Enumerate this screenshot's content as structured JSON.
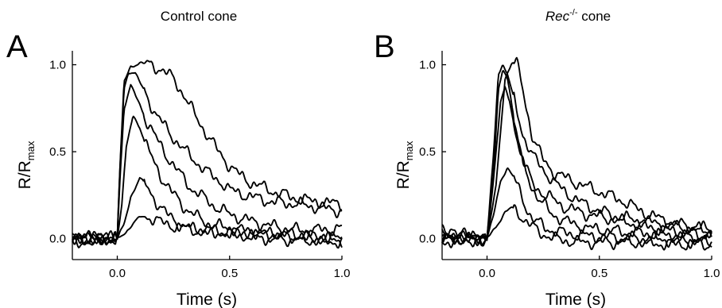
{
  "chart_data": [
    {
      "panel": "A",
      "title": "Control cone",
      "type": "line",
      "xlabel": "Time (s)",
      "ylabel_main": "R/R",
      "ylabel_sub": "max",
      "xlim": [
        -0.2,
        1.0
      ],
      "ylim": [
        -0.12,
        1.08
      ],
      "xticks": [
        {
          "value": 0.0,
          "label": "0.0"
        },
        {
          "value": 0.5,
          "label": "0.5"
        },
        {
          "value": 1.0,
          "label": "1.0"
        }
      ],
      "yticks": [
        {
          "value": 0.0,
          "label": "0.0"
        },
        {
          "value": 0.5,
          "label": "0.5"
        },
        {
          "value": 1.0,
          "label": "1.0"
        }
      ],
      "series": [
        {
          "values": [
            [
              -0.2,
              -0.01
            ],
            [
              0.0,
              0.0
            ],
            [
              0.01,
              0.35
            ],
            [
              0.03,
              0.9
            ],
            [
              0.06,
              0.99
            ],
            [
              0.1,
              1.01
            ],
            [
              0.15,
              1.0
            ],
            [
              0.2,
              0.97
            ],
            [
              0.25,
              0.92
            ],
            [
              0.3,
              0.82
            ],
            [
              0.35,
              0.7
            ],
            [
              0.4,
              0.6
            ],
            [
              0.45,
              0.5
            ],
            [
              0.5,
              0.42
            ],
            [
              0.55,
              0.36
            ],
            [
              0.6,
              0.32
            ],
            [
              0.7,
              0.27
            ],
            [
              0.8,
              0.23
            ],
            [
              0.9,
              0.21
            ],
            [
              1.0,
              0.2
            ]
          ]
        },
        {
          "values": [
            [
              -0.2,
              -0.02
            ],
            [
              0.0,
              0.0
            ],
            [
              0.01,
              0.35
            ],
            [
              0.03,
              0.86
            ],
            [
              0.05,
              0.96
            ],
            [
              0.08,
              0.95
            ],
            [
              0.12,
              0.85
            ],
            [
              0.17,
              0.72
            ],
            [
              0.22,
              0.63
            ],
            [
              0.27,
              0.55
            ],
            [
              0.32,
              0.48
            ],
            [
              0.37,
              0.42
            ],
            [
              0.42,
              0.36
            ],
            [
              0.47,
              0.32
            ],
            [
              0.5,
              0.28
            ],
            [
              0.6,
              0.24
            ],
            [
              0.7,
              0.21
            ],
            [
              0.8,
              0.2
            ],
            [
              0.9,
              0.18
            ],
            [
              1.0,
              0.16
            ]
          ]
        },
        {
          "values": [
            [
              -0.2,
              0.01
            ],
            [
              0.0,
              0.0
            ],
            [
              0.01,
              0.3
            ],
            [
              0.03,
              0.75
            ],
            [
              0.06,
              0.88
            ],
            [
              0.09,
              0.8
            ],
            [
              0.13,
              0.68
            ],
            [
              0.18,
              0.56
            ],
            [
              0.23,
              0.46
            ],
            [
              0.28,
              0.37
            ],
            [
              0.33,
              0.29
            ],
            [
              0.38,
              0.24
            ],
            [
              0.43,
              0.19
            ],
            [
              0.5,
              0.14
            ],
            [
              0.6,
              0.1
            ],
            [
              0.7,
              0.07
            ],
            [
              0.8,
              0.05
            ],
            [
              0.9,
              0.05
            ],
            [
              1.0,
              0.06
            ]
          ]
        },
        {
          "values": [
            [
              -0.2,
              -0.01
            ],
            [
              0.0,
              0.0
            ],
            [
              0.02,
              0.2
            ],
            [
              0.04,
              0.52
            ],
            [
              0.07,
              0.71
            ],
            [
              0.1,
              0.64
            ],
            [
              0.14,
              0.5
            ],
            [
              0.19,
              0.37
            ],
            [
              0.24,
              0.27
            ],
            [
              0.3,
              0.18
            ],
            [
              0.36,
              0.12
            ],
            [
              0.42,
              0.08
            ],
            [
              0.5,
              0.06
            ],
            [
              0.6,
              0.04
            ],
            [
              0.7,
              0.03
            ],
            [
              0.8,
              0.02
            ],
            [
              0.9,
              0.01
            ],
            [
              1.0,
              0.0
            ]
          ]
        },
        {
          "values": [
            [
              -0.2,
              0.0
            ],
            [
              0.0,
              0.0
            ],
            [
              0.03,
              0.08
            ],
            [
              0.06,
              0.24
            ],
            [
              0.1,
              0.35
            ],
            [
              0.13,
              0.3
            ],
            [
              0.17,
              0.22
            ],
            [
              0.22,
              0.14
            ],
            [
              0.28,
              0.08
            ],
            [
              0.35,
              0.05
            ],
            [
              0.45,
              0.04
            ],
            [
              0.55,
              0.03
            ],
            [
              0.65,
              0.02
            ],
            [
              0.8,
              0.01
            ],
            [
              1.0,
              -0.01
            ]
          ]
        },
        {
          "values": [
            [
              -0.2,
              0.02
            ],
            [
              0.0,
              0.0
            ],
            [
              0.04,
              0.04
            ],
            [
              0.08,
              0.1
            ],
            [
              0.11,
              0.13
            ],
            [
              0.15,
              0.12
            ],
            [
              0.2,
              0.09
            ],
            [
              0.3,
              0.06
            ],
            [
              0.4,
              0.04
            ],
            [
              0.55,
              0.02
            ],
            [
              0.7,
              0.0
            ],
            [
              0.85,
              -0.01
            ],
            [
              1.0,
              -0.02
            ]
          ]
        }
      ]
    },
    {
      "panel": "B",
      "title_italic": "Rec",
      "title_sup": "-/-",
      "title_rest": " cone",
      "type": "line",
      "xlabel": "Time (s)",
      "ylabel_main": "R/R",
      "ylabel_sub": "max",
      "xlim": [
        -0.2,
        1.0
      ],
      "ylim": [
        -0.12,
        1.08
      ],
      "xticks": [
        {
          "value": 0.0,
          "label": "0.0"
        },
        {
          "value": 0.5,
          "label": "0.5"
        },
        {
          "value": 1.0,
          "label": "1.0"
        }
      ],
      "yticks": [
        {
          "value": 0.0,
          "label": "0.0"
        },
        {
          "value": 0.5,
          "label": "0.5"
        },
        {
          "value": 1.0,
          "label": "1.0"
        }
      ],
      "series": [
        {
          "values": [
            [
              -0.2,
              0.0
            ],
            [
              0.0,
              0.0
            ],
            [
              0.04,
              0.3
            ],
            [
              0.08,
              0.92
            ],
            [
              0.11,
              1.01
            ],
            [
              0.13,
              1.02
            ],
            [
              0.16,
              0.85
            ],
            [
              0.2,
              0.6
            ],
            [
              0.25,
              0.45
            ],
            [
              0.3,
              0.38
            ],
            [
              0.4,
              0.32
            ],
            [
              0.5,
              0.27
            ],
            [
              0.6,
              0.22
            ],
            [
              0.7,
              0.15
            ],
            [
              0.8,
              0.1
            ],
            [
              0.9,
              0.07
            ],
            [
              1.0,
              0.05
            ]
          ]
        },
        {
          "values": [
            [
              -0.2,
              0.02
            ],
            [
              0.0,
              0.0
            ],
            [
              0.03,
              0.5
            ],
            [
              0.05,
              0.95
            ],
            [
              0.07,
              1.0
            ],
            [
              0.09,
              0.95
            ],
            [
              0.12,
              0.8
            ],
            [
              0.16,
              0.6
            ],
            [
              0.2,
              0.48
            ],
            [
              0.25,
              0.4
            ],
            [
              0.3,
              0.32
            ],
            [
              0.4,
              0.22
            ],
            [
              0.5,
              0.16
            ],
            [
              0.6,
              0.12
            ],
            [
              0.7,
              0.1
            ],
            [
              0.8,
              0.08
            ],
            [
              0.9,
              0.06
            ],
            [
              1.0,
              0.05
            ]
          ]
        },
        {
          "values": [
            [
              -0.2,
              -0.02
            ],
            [
              0.0,
              0.0
            ],
            [
              0.03,
              0.4
            ],
            [
              0.05,
              0.85
            ],
            [
              0.07,
              0.97
            ],
            [
              0.09,
              0.92
            ],
            [
              0.12,
              0.7
            ],
            [
              0.16,
              0.45
            ],
            [
              0.2,
              0.32
            ],
            [
              0.25,
              0.26
            ],
            [
              0.3,
              0.22
            ],
            [
              0.35,
              0.18
            ],
            [
              0.45,
              0.14
            ],
            [
              0.6,
              0.1
            ],
            [
              0.75,
              0.06
            ],
            [
              0.9,
              0.03
            ],
            [
              1.0,
              0.02
            ]
          ]
        },
        {
          "values": [
            [
              -0.2,
              0.03
            ],
            [
              0.0,
              0.0
            ],
            [
              0.03,
              0.35
            ],
            [
              0.06,
              0.78
            ],
            [
              0.08,
              0.87
            ],
            [
              0.1,
              0.8
            ],
            [
              0.13,
              0.58
            ],
            [
              0.17,
              0.38
            ],
            [
              0.22,
              0.25
            ],
            [
              0.28,
              0.15
            ],
            [
              0.35,
              0.1
            ],
            [
              0.45,
              0.06
            ],
            [
              0.6,
              0.04
            ],
            [
              0.8,
              0.02
            ],
            [
              1.0,
              0.0
            ]
          ]
        },
        {
          "values": [
            [
              -0.2,
              -0.01
            ],
            [
              0.0,
              0.0
            ],
            [
              0.03,
              0.14
            ],
            [
              0.06,
              0.33
            ],
            [
              0.09,
              0.41
            ],
            [
              0.12,
              0.35
            ],
            [
              0.16,
              0.22
            ],
            [
              0.2,
              0.12
            ],
            [
              0.26,
              0.06
            ],
            [
              0.35,
              0.03
            ],
            [
              0.5,
              0.01
            ],
            [
              0.7,
              0.0
            ],
            [
              1.0,
              -0.02
            ]
          ]
        },
        {
          "values": [
            [
              -0.2,
              0.04
            ],
            [
              0.0,
              0.0
            ],
            [
              0.04,
              0.07
            ],
            [
              0.08,
              0.15
            ],
            [
              0.11,
              0.18
            ],
            [
              0.14,
              0.15
            ],
            [
              0.18,
              0.09
            ],
            [
              0.23,
              0.04
            ],
            [
              0.3,
              0.0
            ],
            [
              0.4,
              -0.02
            ],
            [
              0.6,
              -0.02
            ],
            [
              0.8,
              -0.03
            ],
            [
              1.0,
              -0.03
            ]
          ]
        }
      ]
    }
  ]
}
